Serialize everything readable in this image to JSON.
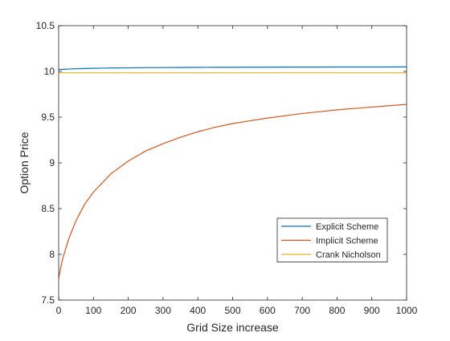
{
  "chart_data": {
    "type": "line",
    "title": "",
    "xlabel": "Grid Size increase",
    "ylabel": "Option Price",
    "xlim": [
      0,
      1000
    ],
    "ylim": [
      7.5,
      10.5
    ],
    "xticks": [
      0,
      100,
      200,
      300,
      400,
      500,
      600,
      700,
      800,
      900,
      1000
    ],
    "yticks": [
      7.5,
      8,
      8.5,
      9,
      9.5,
      10,
      10.5
    ],
    "xtick_labels": [
      "0",
      "100",
      "200",
      "300",
      "400",
      "500",
      "600",
      "700",
      "800",
      "900",
      "1000"
    ],
    "ytick_labels": [
      "7.5",
      "8",
      "8.5",
      "9",
      "9.5",
      "10",
      "10.5"
    ],
    "grid": false,
    "legend_position": "lower-right",
    "x": [
      0,
      10,
      20,
      30,
      50,
      75,
      100,
      150,
      200,
      250,
      300,
      350,
      400,
      450,
      500,
      550,
      600,
      650,
      700,
      750,
      800,
      850,
      900,
      950,
      1000
    ],
    "series": [
      {
        "name": "Explicit Scheme",
        "color": "#0072BD",
        "values": [
          10.02,
          10.022,
          10.024,
          10.026,
          10.029,
          10.032,
          10.034,
          10.037,
          10.039,
          10.041,
          10.042,
          10.043,
          10.044,
          10.045,
          10.045,
          10.046,
          10.046,
          10.047,
          10.047,
          10.047,
          10.048,
          10.048,
          10.048,
          10.048,
          10.049
        ]
      },
      {
        "name": "Implicit Scheme",
        "color": "#D95319",
        "values": [
          7.74,
          7.93,
          8.06,
          8.18,
          8.37,
          8.55,
          8.68,
          8.88,
          9.02,
          9.13,
          9.21,
          9.28,
          9.34,
          9.39,
          9.43,
          9.46,
          9.49,
          9.515,
          9.54,
          9.56,
          9.58,
          9.595,
          9.61,
          9.625,
          9.64
        ]
      },
      {
        "name": "Crank Nicholson",
        "color": "#EDB120",
        "values": [
          9.985,
          9.985,
          9.985,
          9.985,
          9.985,
          9.985,
          9.985,
          9.985,
          9.985,
          9.985,
          9.985,
          9.985,
          9.985,
          9.985,
          9.985,
          9.985,
          9.985,
          9.985,
          9.985,
          9.985,
          9.985,
          9.985,
          9.985,
          9.985,
          9.985
        ]
      }
    ]
  }
}
